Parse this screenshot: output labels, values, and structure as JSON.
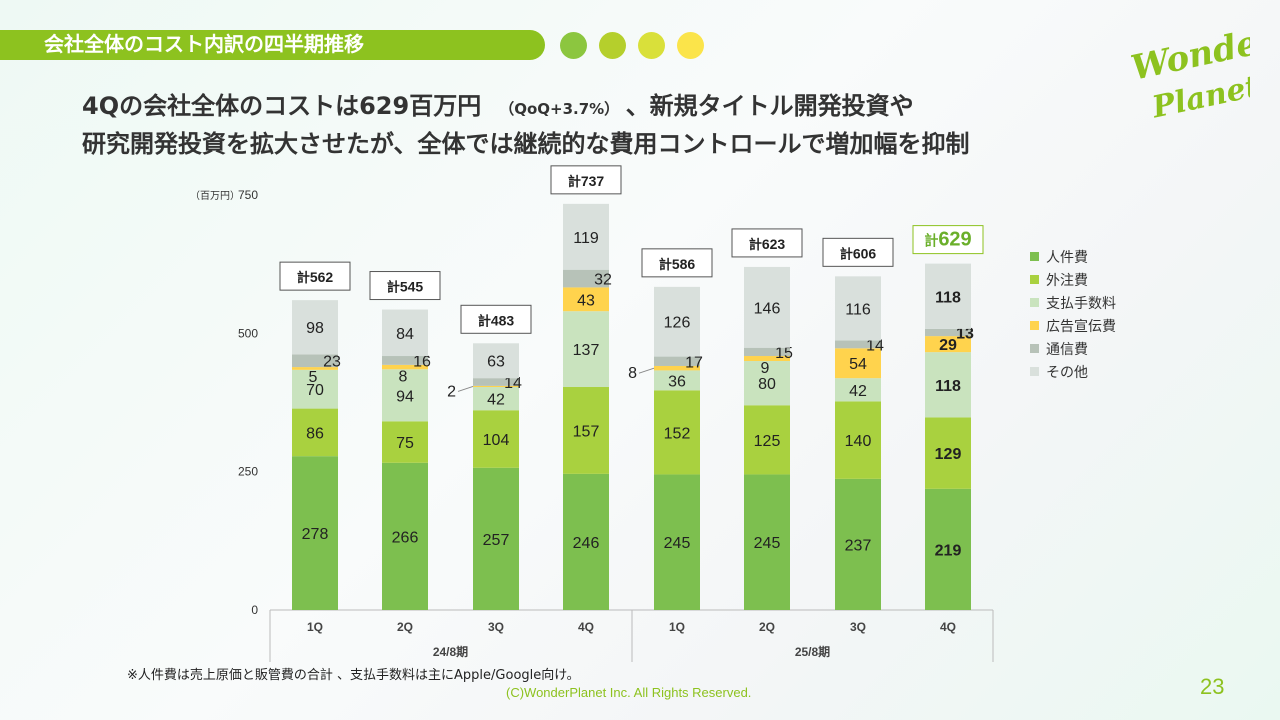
{
  "header": {
    "title": "会社全体のコスト内訳の四半期推移",
    "dot_colors": [
      "#8cc63f",
      "#b5cf2c",
      "#d9e03a",
      "#fbe44a"
    ]
  },
  "headline": {
    "line1_a": "4Qの会社全体のコストは629百万円",
    "line1_qoq": "（QoQ+3.7%）",
    "line1_b": "、新規タイトル開発投資や",
    "line2": "研究開発投資を拡大させたが、全体では継続的な費用コントロールで増加幅を抑制"
  },
  "logo": {
    "text": "Wonder Planet",
    "color": "#8dc21f"
  },
  "chart_data": {
    "type": "bar",
    "stacked": true,
    "ylabel": "（百万円）",
    "ylim": [
      0,
      750
    ],
    "yticks": [
      0,
      250,
      500,
      750
    ],
    "categories": [
      "1Q",
      "2Q",
      "3Q",
      "4Q",
      "1Q",
      "2Q",
      "3Q",
      "4Q"
    ],
    "groups": [
      {
        "label": "24/8期",
        "count": 4
      },
      {
        "label": "25/8期",
        "count": 4
      }
    ],
    "total_prefix": "計",
    "totals": [
      562,
      545,
      483,
      737,
      586,
      623,
      606,
      629
    ],
    "series": [
      {
        "name": "人件費",
        "color": "#7dbf4f",
        "values": [
          278,
          266,
          257,
          246,
          245,
          245,
          237,
          219
        ]
      },
      {
        "name": "外注費",
        "color": "#a9d13f",
        "values": [
          86,
          75,
          104,
          157,
          152,
          125,
          140,
          129
        ]
      },
      {
        "name": "支払手数料",
        "color": "#c9e3be",
        "values": [
          70,
          94,
          42,
          137,
          36,
          80,
          42,
          118
        ]
      },
      {
        "name": "広告宣伝費",
        "color": "#ffd34d",
        "values": [
          5,
          8,
          2,
          43,
          8,
          9,
          54,
          29
        ]
      },
      {
        "name": "通信費",
        "color": "#b7c2b8",
        "values": [
          23,
          16,
          14,
          32,
          17,
          15,
          14,
          13
        ]
      },
      {
        "name": "その他",
        "color": "#d9e0dc",
        "values": [
          98,
          84,
          63,
          119,
          126,
          146,
          116,
          118
        ]
      }
    ],
    "legend_position": "right",
    "grid": false
  },
  "footnote": "※人件費は売上原価と販管費の合計 、支払手数料は主にApple/Google向け。",
  "copyright": "(C)WonderPlanet Inc.  All Rights Reserved.",
  "page_number": "23"
}
